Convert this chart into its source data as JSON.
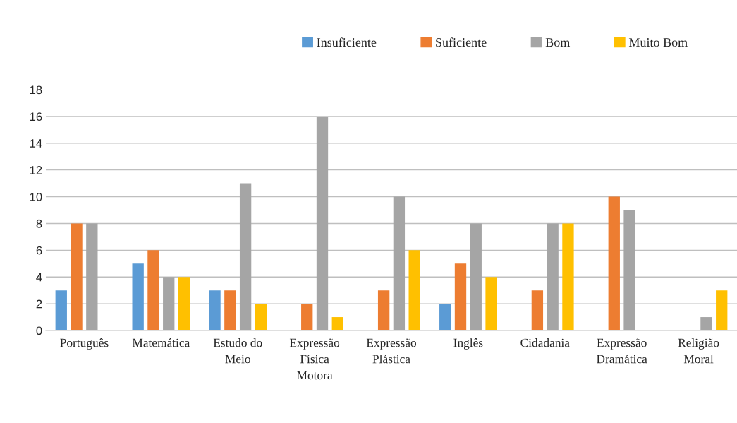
{
  "chart_data": {
    "type": "bar",
    "categories": [
      "Português",
      "Matemática",
      "Estudo do\nMeio",
      "Expressão\nFísica\nMotora",
      "Expressão\nPlástica",
      "Inglês",
      "Cidadania",
      "Expressão\nDramática",
      "Religião\nMoral"
    ],
    "series": [
      {
        "name": "Insuficiente",
        "color": "#5b9bd5",
        "values": [
          3,
          5,
          3,
          null,
          null,
          2,
          null,
          null,
          null
        ]
      },
      {
        "name": "Suficiente",
        "color": "#ed7d31",
        "values": [
          8,
          6,
          3,
          2,
          3,
          5,
          3,
          10,
          null
        ]
      },
      {
        "name": "Bom",
        "color": "#a5a5a5",
        "values": [
          8,
          4,
          11,
          16,
          10,
          8,
          8,
          9,
          1
        ]
      },
      {
        "name": "Muito Bom",
        "color": "#ffc000",
        "values": [
          null,
          4,
          2,
          1,
          6,
          4,
          8,
          null,
          3
        ]
      }
    ],
    "ylim": [
      0,
      18
    ],
    "yticks": [
      0,
      2,
      4,
      6,
      8,
      10,
      12,
      14,
      16,
      18
    ],
    "grid": "y",
    "legend": "top"
  }
}
